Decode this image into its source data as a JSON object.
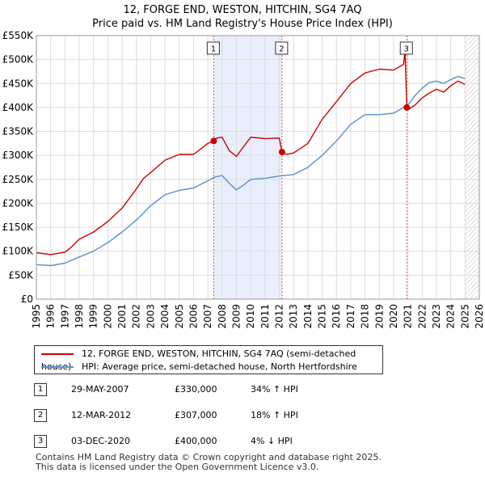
{
  "title": {
    "line1": "12, FORGE END, WESTON, HITCHIN, SG4 7AQ",
    "line2": "Price paid vs. HM Land Registry's House Price Index (HPI)"
  },
  "colors": {
    "property": "#cc0000",
    "hpi": "#5b8fd0",
    "highlight": "#e8eefb",
    "future_hatch": "#bbbbbb",
    "grid": "#dddddd",
    "marker_line": "#dd5555"
  },
  "legend": {
    "property_label": "12, FORGE END, WESTON, HITCHIN, SG4 7AQ (semi-detached house)",
    "hpi_label": "HPI: Average price, semi-detached house, North Hertfordshire"
  },
  "sales": [
    {
      "num": "1",
      "date": "29-MAY-2007",
      "price": "£330,000",
      "hpi": "34% ↑ HPI"
    },
    {
      "num": "2",
      "date": "12-MAR-2012",
      "price": "£307,000",
      "hpi": "18% ↑ HPI"
    },
    {
      "num": "3",
      "date": "03-DEC-2020",
      "price": "£400,000",
      "hpi": "4% ↓ HPI"
    }
  ],
  "footer": {
    "line1": "Contains HM Land Registry data © Crown copyright and database right 2025.",
    "line2": "This data is licensed under the Open Government Licence v3.0."
  },
  "chart_data": {
    "type": "line",
    "title": "Price paid vs. HM Land Registry's House Price Index (HPI)",
    "xlim": [
      1995,
      2026
    ],
    "ylim": [
      0,
      550000
    ],
    "x_ticks": [
      "1995",
      "1996",
      "1997",
      "1998",
      "1999",
      "2000",
      "2001",
      "2002",
      "2003",
      "2004",
      "2005",
      "2006",
      "2007",
      "2008",
      "2009",
      "2010",
      "2011",
      "2012",
      "2013",
      "2014",
      "2015",
      "2016",
      "2017",
      "2018",
      "2019",
      "2020",
      "2021",
      "2022",
      "2023",
      "2024",
      "2025",
      "2026"
    ],
    "y_ticks": [
      {
        "value": 0,
        "label": "£0"
      },
      {
        "value": 50000,
        "label": "£50K"
      },
      {
        "value": 100000,
        "label": "£100K"
      },
      {
        "value": 150000,
        "label": "£150K"
      },
      {
        "value": 200000,
        "label": "£200K"
      },
      {
        "value": 250000,
        "label": "£250K"
      },
      {
        "value": 300000,
        "label": "£300K"
      },
      {
        "value": 350000,
        "label": "£350K"
      },
      {
        "value": 400000,
        "label": "£400K"
      },
      {
        "value": 450000,
        "label": "£450K"
      },
      {
        "value": 500000,
        "label": "£500K"
      },
      {
        "value": 550000,
        "label": "£550K"
      }
    ],
    "highlight_range": [
      2007.41,
      2012.19
    ],
    "future_from": 2025.0,
    "sale_markers": [
      {
        "label": "1",
        "x": 2007.41,
        "y": 330000
      },
      {
        "label": "2",
        "x": 2012.19,
        "y": 307000
      },
      {
        "label": "3",
        "x": 2020.92,
        "y": 400000
      }
    ],
    "series": [
      {
        "name": "12, FORGE END, WESTON, HITCHIN, SG4 7AQ (semi-detached house)",
        "x": [
          1995,
          1996,
          1997,
          1997.5,
          1998,
          1999,
          2000,
          2001,
          2002,
          2002.5,
          2003,
          2004,
          2005,
          2006,
          2007,
          2007.41,
          2007.6,
          2008,
          2008.5,
          2009,
          2009.5,
          2010,
          2011,
          2012,
          2012.19,
          2012.5,
          2013,
          2014,
          2015,
          2016,
          2017,
          2018,
          2019,
          2020,
          2020.7,
          2020.8,
          2020.92,
          2021,
          2021.5,
          2022,
          2022.5,
          2023,
          2023.5,
          2024,
          2024.5,
          2025
        ],
        "values": [
          97000,
          93000,
          98000,
          110000,
          125000,
          140000,
          162000,
          190000,
          230000,
          252000,
          264000,
          290000,
          302000,
          302000,
          325000,
          330000,
          336000,
          338000,
          310000,
          298000,
          318000,
          338000,
          335000,
          336000,
          307000,
          302000,
          305000,
          325000,
          375000,
          412000,
          450000,
          472000,
          480000,
          478000,
          490000,
          520000,
          400000,
          395000,
          405000,
          420000,
          430000,
          438000,
          432000,
          445000,
          455000,
          448000
        ]
      },
      {
        "name": "HPI: Average price, semi-detached house, North Hertfordshire",
        "x": [
          1995,
          1996,
          1997,
          1998,
          1999,
          2000,
          2001,
          2002,
          2003,
          2004,
          2005,
          2006,
          2007,
          2007.5,
          2008,
          2008.5,
          2009,
          2009.5,
          2010,
          2011,
          2012,
          2013,
          2014,
          2015,
          2016,
          2017,
          2018,
          2019,
          2020,
          2021,
          2021.5,
          2022,
          2022.5,
          2023,
          2023.5,
          2024,
          2024.5,
          2025
        ],
        "values": [
          72000,
          70000,
          75000,
          88000,
          100000,
          118000,
          140000,
          165000,
          195000,
          218000,
          227000,
          232000,
          247000,
          255000,
          258000,
          242000,
          228000,
          238000,
          250000,
          252000,
          257000,
          260000,
          275000,
          300000,
          330000,
          365000,
          385000,
          385000,
          388000,
          405000,
          425000,
          440000,
          452000,
          455000,
          450000,
          458000,
          465000,
          460000
        ]
      }
    ]
  }
}
